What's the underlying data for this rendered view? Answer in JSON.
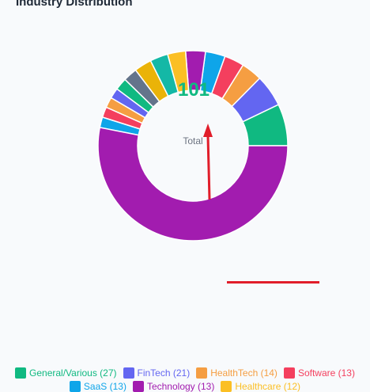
{
  "chart_data": {
    "type": "pie",
    "variant": "donut",
    "title": "Industry Distribution",
    "center_value": "101",
    "center_label": "Total",
    "legend_position": "bottom",
    "slices": [
      {
        "label": "General/Various",
        "value": 27,
        "color": "#10b981"
      },
      {
        "label": "FinTech",
        "value": 21,
        "color": "#6366f1"
      },
      {
        "label": "HealthTech",
        "value": 14,
        "color": "#f59e42"
      },
      {
        "label": "Software",
        "value": 13,
        "color": "#f43f5e"
      },
      {
        "label": "SaaS",
        "value": 13,
        "color": "#0ea5e9"
      },
      {
        "label": "Technology",
        "value": 13,
        "color": "#a21caf"
      },
      {
        "label": "Healthcare",
        "value": 12,
        "color": "#fbbf24"
      }
    ],
    "rendered_segments": [
      {
        "value": 7.2,
        "color": "#10b981"
      },
      {
        "value": 5.5,
        "color": "#6366f1"
      },
      {
        "value": 3.6,
        "color": "#f59e42"
      },
      {
        "value": 3.4,
        "color": "#f43f5e"
      },
      {
        "value": 3.4,
        "color": "#0ea5e9"
      },
      {
        "value": 3.4,
        "color": "#a21caf"
      },
      {
        "value": 3.1,
        "color": "#fbbf24"
      },
      {
        "value": 3.1,
        "color": "#14b8a6"
      },
      {
        "value": 3.0,
        "color": "#eab308"
      },
      {
        "value": 2.4,
        "color": "#64748b"
      },
      {
        "value": 2.1,
        "color": "#10b981"
      },
      {
        "value": 1.8,
        "color": "#6366f1"
      },
      {
        "value": 1.8,
        "color": "#f59e42"
      },
      {
        "value": 1.8,
        "color": "#f43f5e"
      },
      {
        "value": 1.8,
        "color": "#0ea5e9"
      },
      {
        "value": 53.6,
        "color": "#a21caf"
      }
    ]
  },
  "annotation_colors": {
    "arrow": "#e11d2a"
  }
}
